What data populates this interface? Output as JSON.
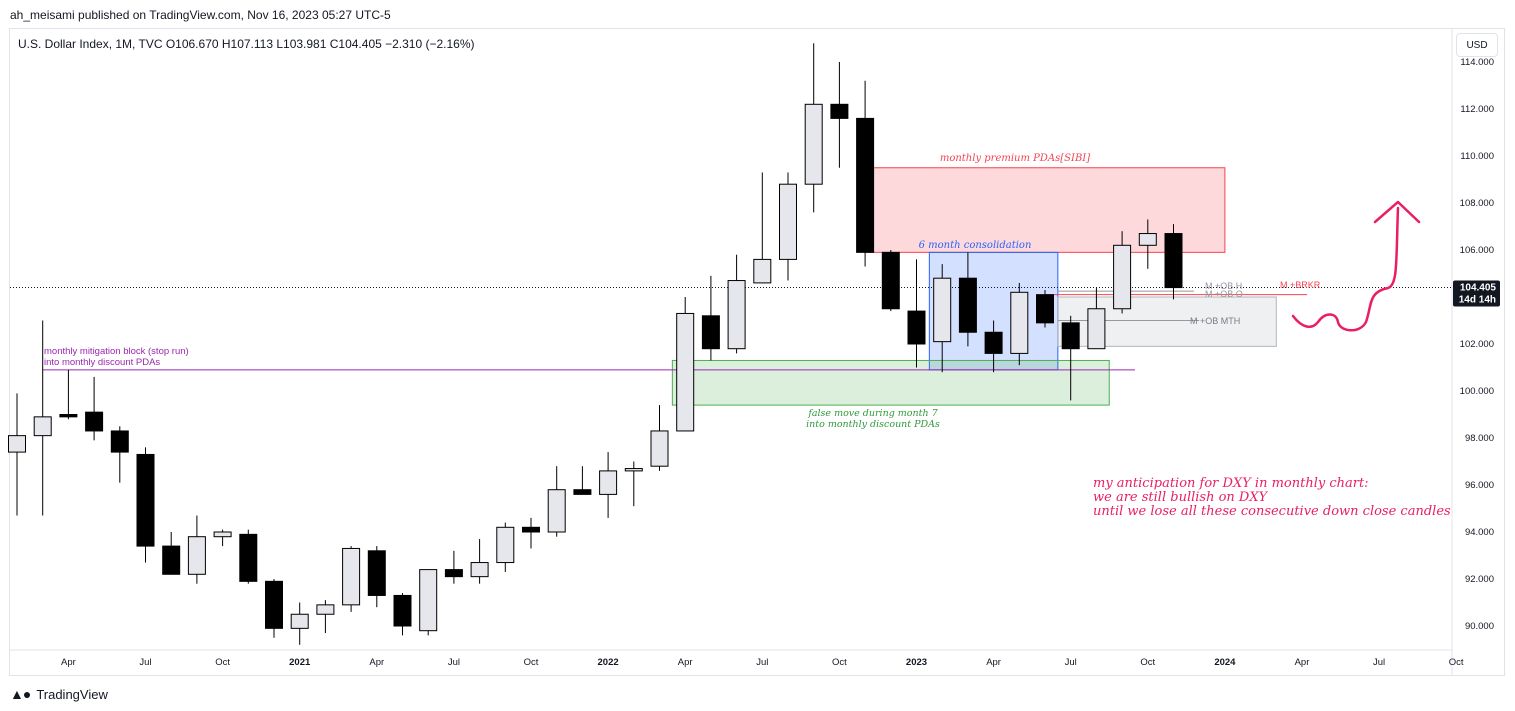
{
  "header": {
    "published_by": "ah_meisami published on TradingView.com, Nov 16, 2023 05:27 UTC-5"
  },
  "legend": {
    "text": "U.S. Dollar Index, 1M, TVC  O106.670  H107.113  L103.981  C104.405  −2.310 (−2.16%)"
  },
  "currency_button": "USD",
  "footer": {
    "brand": "TradingView"
  },
  "colors": {
    "bull": "#e6e7ec",
    "bear": "#000000",
    "premium_zone": "#f4434f",
    "consolidation_zone": "#2962ff",
    "discount_zone": "#4caf50",
    "mitigation_line": "#9c27b0",
    "anticipation": "#e91e63"
  },
  "chart_data": {
    "type": "candlestick",
    "symbol": "U.S. Dollar Index",
    "timeframe": "1M",
    "ylim": [
      89.0,
      114.8
    ],
    "y_ticks": [
      {
        "value": 90,
        "label": "90.000"
      },
      {
        "value": 92,
        "label": "92.000"
      },
      {
        "value": 94,
        "label": "94.000"
      },
      {
        "value": 96,
        "label": "96.000"
      },
      {
        "value": 98,
        "label": "98.000"
      },
      {
        "value": 100,
        "label": "100.000"
      },
      {
        "value": 102,
        "label": "102.000"
      },
      {
        "value": 104,
        "label": "104.000"
      },
      {
        "value": 106,
        "label": "106.000"
      },
      {
        "value": 108,
        "label": "108.000"
      },
      {
        "value": 110,
        "label": "110.000"
      },
      {
        "value": 112,
        "label": "112.000"
      },
      {
        "value": 114,
        "label": "114.000"
      }
    ],
    "x_ticks": [
      {
        "i": 2,
        "label": "Apr"
      },
      {
        "i": 5,
        "label": "Jul"
      },
      {
        "i": 8,
        "label": "Oct"
      },
      {
        "i": 11,
        "label": "2021"
      },
      {
        "i": 14,
        "label": "Apr"
      },
      {
        "i": 17,
        "label": "Jul"
      },
      {
        "i": 20,
        "label": "Oct"
      },
      {
        "i": 23,
        "label": "2022"
      },
      {
        "i": 26,
        "label": "Apr"
      },
      {
        "i": 29,
        "label": "Jul"
      },
      {
        "i": 32,
        "label": "Oct"
      },
      {
        "i": 35,
        "label": "2023"
      },
      {
        "i": 38,
        "label": "Apr"
      },
      {
        "i": 41,
        "label": "Jul"
      },
      {
        "i": 44,
        "label": "Oct"
      },
      {
        "i": 47,
        "label": "2024"
      },
      {
        "i": 50,
        "label": "Apr"
      },
      {
        "i": 53,
        "label": "Jul"
      },
      {
        "i": 56,
        "label": "Oct"
      }
    ],
    "candles": [
      {
        "o": 97.4,
        "h": 99.9,
        "l": 94.7,
        "c": 98.1
      },
      {
        "o": 98.1,
        "h": 103.0,
        "l": 94.7,
        "c": 98.9
      },
      {
        "o": 99.0,
        "h": 100.9,
        "l": 98.8,
        "c": 98.9
      },
      {
        "o": 99.1,
        "h": 100.6,
        "l": 97.9,
        "c": 98.3
      },
      {
        "o": 98.3,
        "h": 98.5,
        "l": 96.1,
        "c": 97.4
      },
      {
        "o": 97.3,
        "h": 97.6,
        "l": 92.7,
        "c": 93.4
      },
      {
        "o": 93.4,
        "h": 94.0,
        "l": 92.2,
        "c": 92.2
      },
      {
        "o": 92.2,
        "h": 94.7,
        "l": 91.8,
        "c": 93.8
      },
      {
        "o": 93.8,
        "h": 94.1,
        "l": 93.4,
        "c": 94.0
      },
      {
        "o": 93.9,
        "h": 94.1,
        "l": 91.8,
        "c": 91.9
      },
      {
        "o": 91.9,
        "h": 92.0,
        "l": 89.5,
        "c": 89.9
      },
      {
        "o": 89.9,
        "h": 91.0,
        "l": 89.2,
        "c": 90.5
      },
      {
        "o": 90.5,
        "h": 91.1,
        "l": 89.7,
        "c": 90.9
      },
      {
        "o": 90.9,
        "h": 93.4,
        "l": 90.6,
        "c": 93.3
      },
      {
        "o": 93.2,
        "h": 93.4,
        "l": 90.8,
        "c": 91.3
      },
      {
        "o": 91.3,
        "h": 91.4,
        "l": 89.6,
        "c": 90.0
      },
      {
        "o": 89.8,
        "h": 92.4,
        "l": 89.6,
        "c": 92.4
      },
      {
        "o": 92.4,
        "h": 93.2,
        "l": 91.8,
        "c": 92.1
      },
      {
        "o": 92.1,
        "h": 93.7,
        "l": 91.8,
        "c": 92.7
      },
      {
        "o": 92.7,
        "h": 94.4,
        "l": 92.3,
        "c": 94.2
      },
      {
        "o": 94.2,
        "h": 94.6,
        "l": 93.3,
        "c": 94.0
      },
      {
        "o": 94.0,
        "h": 96.8,
        "l": 93.8,
        "c": 95.8
      },
      {
        "o": 95.8,
        "h": 96.8,
        "l": 95.7,
        "c": 95.6
      },
      {
        "o": 95.6,
        "h": 97.4,
        "l": 94.6,
        "c": 96.6
      },
      {
        "o": 96.6,
        "h": 97.0,
        "l": 95.1,
        "c": 96.7
      },
      {
        "o": 96.8,
        "h": 99.4,
        "l": 96.6,
        "c": 98.3
      },
      {
        "o": 98.3,
        "h": 104.0,
        "l": 98.3,
        "c": 103.3
      },
      {
        "o": 103.2,
        "h": 104.9,
        "l": 101.3,
        "c": 101.8
      },
      {
        "o": 101.8,
        "h": 105.8,
        "l": 101.6,
        "c": 104.7
      },
      {
        "o": 104.6,
        "h": 109.3,
        "l": 104.6,
        "c": 105.6
      },
      {
        "o": 105.6,
        "h": 109.3,
        "l": 104.7,
        "c": 108.8
      },
      {
        "o": 108.8,
        "h": 114.8,
        "l": 107.6,
        "c": 112.2
      },
      {
        "o": 112.2,
        "h": 114.0,
        "l": 109.5,
        "c": 111.6
      },
      {
        "o": 111.6,
        "h": 113.2,
        "l": 105.3,
        "c": 105.9
      },
      {
        "o": 105.9,
        "h": 106.0,
        "l": 103.4,
        "c": 103.5
      },
      {
        "o": 103.4,
        "h": 105.6,
        "l": 101.0,
        "c": 102.0
      },
      {
        "o": 102.1,
        "h": 105.4,
        "l": 100.8,
        "c": 104.8
      },
      {
        "o": 104.8,
        "h": 105.9,
        "l": 101.9,
        "c": 102.5
      },
      {
        "o": 102.5,
        "h": 103.0,
        "l": 100.8,
        "c": 101.6
      },
      {
        "o": 101.6,
        "h": 104.6,
        "l": 101.1,
        "c": 104.2
      },
      {
        "o": 104.1,
        "h": 104.3,
        "l": 102.7,
        "c": 102.9
      },
      {
        "o": 102.9,
        "h": 103.2,
        "l": 99.6,
        "c": 101.8
      },
      {
        "o": 101.8,
        "h": 104.4,
        "l": 101.8,
        "c": 103.5
      },
      {
        "o": 103.5,
        "h": 106.8,
        "l": 103.3,
        "c": 106.2
      },
      {
        "o": 106.2,
        "h": 107.3,
        "l": 105.2,
        "c": 106.7
      },
      {
        "o": 106.7,
        "h": 107.1,
        "l": 103.9,
        "c": 104.4
      }
    ],
    "price_line": {
      "value": 104.405,
      "label": "104.405",
      "countdown": "14d 14h"
    },
    "zones": [
      {
        "name": "premium",
        "i0": 33.0,
        "i1": 47.0,
        "y0": 105.9,
        "y1": 109.5
      },
      {
        "name": "consolidation",
        "i0": 35.5,
        "i1": 40.5,
        "y0": 100.9,
        "y1": 105.9
      },
      {
        "name": "discount",
        "i0": 25.5,
        "i1": 42.5,
        "y0": 99.4,
        "y1": 101.3
      },
      {
        "name": "ob",
        "i0": 40.5,
        "i1": 49.0,
        "y0": 101.9,
        "y1": 104.0
      }
    ],
    "lines": [
      {
        "name": "mitigation",
        "i0": 1.0,
        "i1": 43.5,
        "y": 100.9
      },
      {
        "name": "brkr",
        "i0": 40.0,
        "i1": 50.2,
        "y": 104.1
      }
    ],
    "annotations": {
      "premium": "monthly premium PDAs[SIBI]",
      "consolidation": "6 month consolidation",
      "false_move_1": "false move during month 7",
      "false_move_2": "into monthly discount PDAs",
      "mitigation_1": "monthly mitigation block (stop run)",
      "mitigation_2": "into monthly discount PDAs",
      "ob_h": "M +OB H",
      "ob_o": "M +OB O",
      "ob_mth": "M +OB MTH",
      "brkr": "M +BRKR",
      "anticipation_1": "my anticipation for DXY in monthly chart:",
      "anticipation_2": "we are still bullish on DXY",
      "anticipation_3": "until we lose all these consecutive down close candles"
    }
  }
}
